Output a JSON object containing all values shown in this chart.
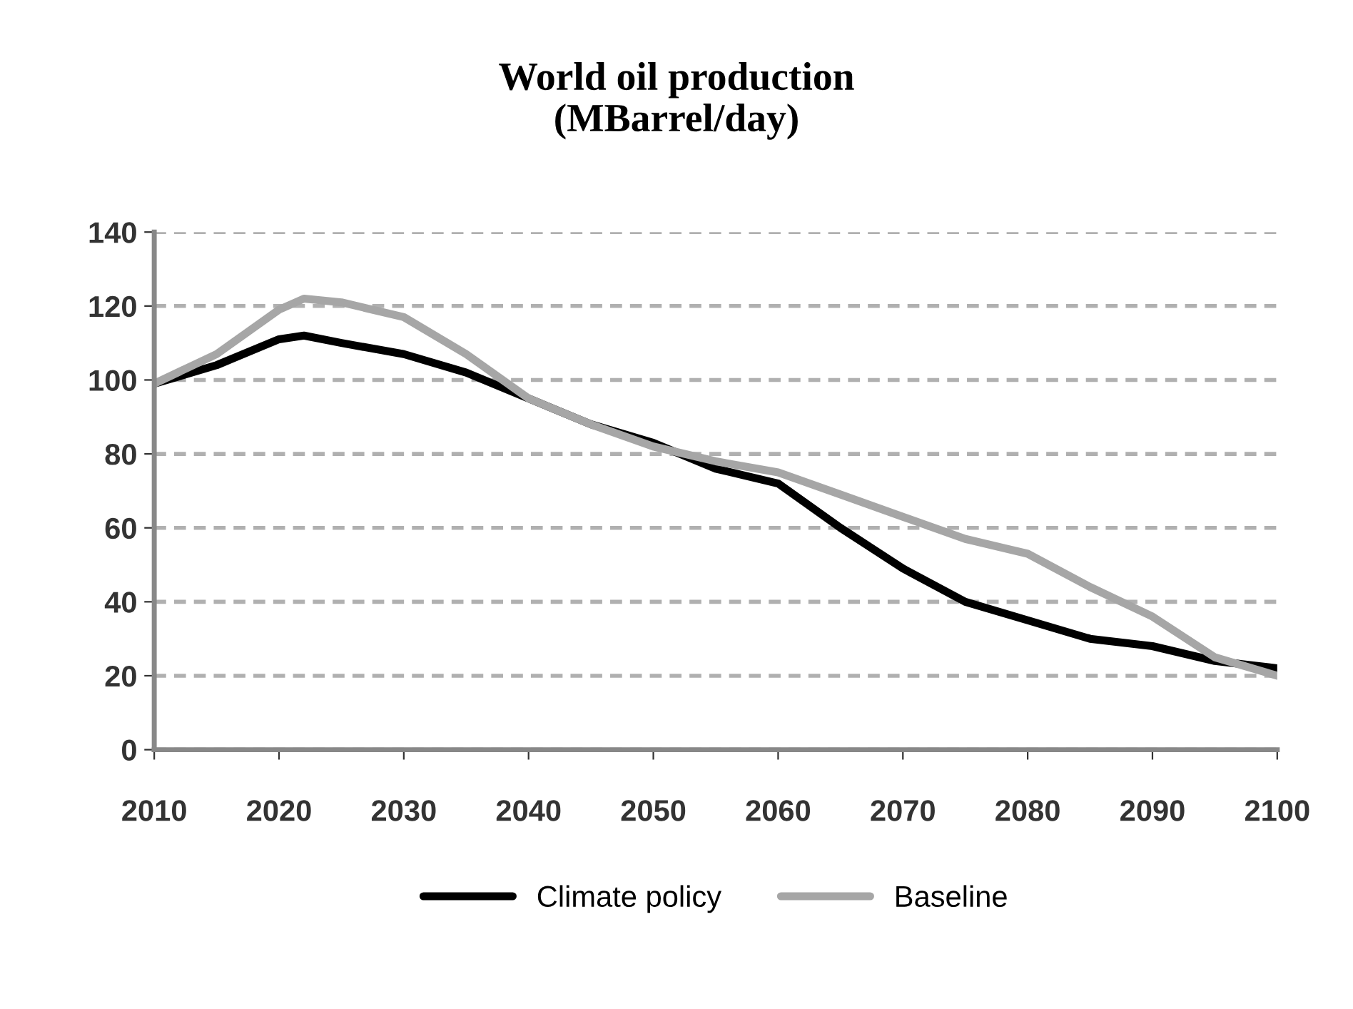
{
  "chart_data": {
    "type": "line",
    "title": "World oil production\n(MBarrel/day)",
    "x": [
      2010,
      2015,
      2020,
      2022,
      2025,
      2030,
      2035,
      2040,
      2045,
      2050,
      2055,
      2060,
      2065,
      2070,
      2075,
      2080,
      2085,
      2090,
      2095,
      2100
    ],
    "series": [
      {
        "name": "Climate policy",
        "color": "#000000",
        "values": [
          99,
          104,
          111,
          112,
          110,
          107,
          102,
          95,
          88,
          83,
          76,
          72,
          60,
          49,
          40,
          35,
          30,
          28,
          24,
          22
        ]
      },
      {
        "name": "Baseline",
        "color": "#a6a6a6",
        "values": [
          99,
          107,
          119,
          122,
          121,
          117,
          107,
          95,
          88,
          82,
          78,
          75,
          69,
          63,
          57,
          53,
          44,
          36,
          25,
          20
        ]
      }
    ],
    "xlim": [
      2010,
      2100
    ],
    "xticks": [
      2010,
      2020,
      2030,
      2040,
      2050,
      2060,
      2070,
      2080,
      2090,
      2100
    ],
    "ylim": [
      0,
      140
    ],
    "yticks": [
      0,
      20,
      40,
      60,
      80,
      100,
      120,
      140
    ],
    "grid": "y",
    "legend": "bottom",
    "marker": "none",
    "line_style": "solid"
  }
}
